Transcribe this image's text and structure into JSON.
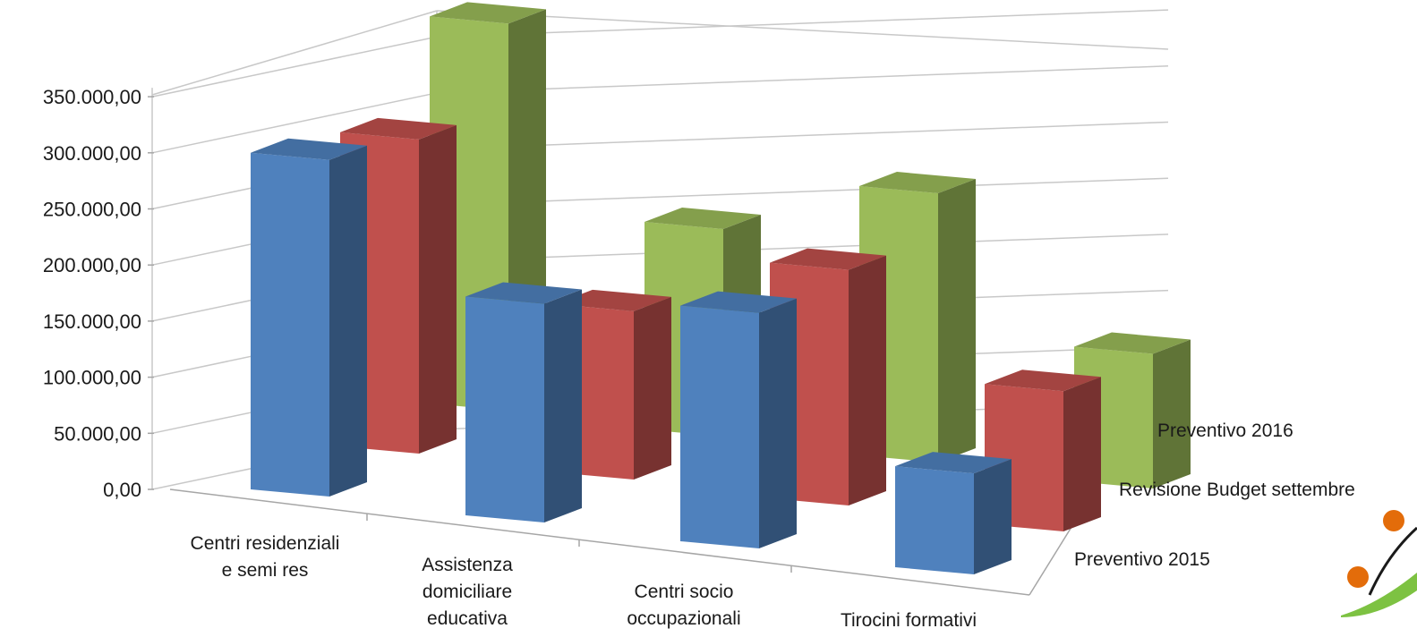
{
  "chart_data": {
    "type": "bar",
    "variant": "3d-column",
    "title": "",
    "xlabel": "",
    "ylabel": "",
    "ylim": [
      0,
      350000
    ],
    "yticks": [
      "0,00",
      "50.000,00",
      "100.000,00",
      "150.000,00",
      "200.000,00",
      "250.000,00",
      "300.000,00",
      "350.000,00"
    ],
    "categories": [
      [
        "Centri residenziali",
        "e semi res"
      ],
      [
        "Assistenza",
        "domiciliare",
        "educativa"
      ],
      [
        "Centri socio",
        "occupazionali"
      ],
      [
        "Tirocini formativi"
      ]
    ],
    "series": [
      {
        "name": "Preventivo 2015",
        "color": "#4f81bd",
        "values": [
          300000,
          195000,
          210000,
          90000
        ]
      },
      {
        "name": "Revisione Budget settembre",
        "color": "#c0504d",
        "values": [
          280000,
          150000,
          210000,
          125000
        ]
      },
      {
        "name": "Preventivo 2016",
        "color": "#9bbb59",
        "values": [
          345000,
          185000,
          240000,
          120000
        ]
      }
    ],
    "grid": true,
    "legend": "depth-axis-right"
  }
}
